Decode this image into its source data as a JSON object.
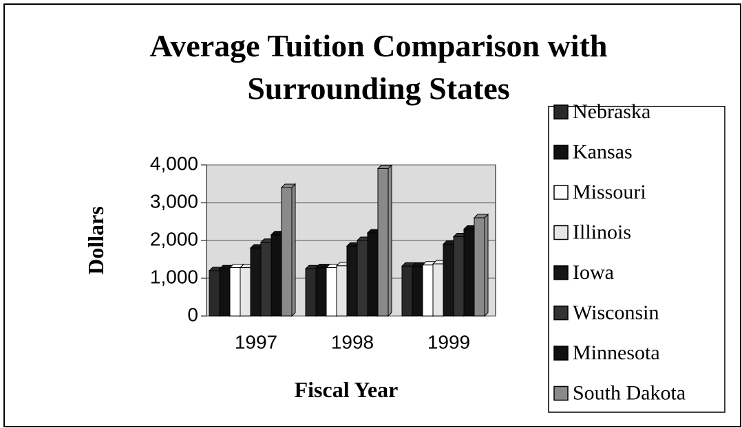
{
  "chart_data": {
    "type": "bar",
    "title": "Average Tuition Comparison with",
    "subtitle": "Surrounding States",
    "x_label": "Fiscal Year",
    "y_label": "Dollars",
    "categories": [
      "1997",
      "1998",
      "1999"
    ],
    "series": [
      {
        "name": "Nebraska",
        "color": "#2a2a2a",
        "values": [
          1200,
          1250,
          1320
        ]
      },
      {
        "name": "Kansas",
        "color": "#111111",
        "values": [
          1250,
          1280,
          1320
        ]
      },
      {
        "name": "Missouri",
        "color": "#ffffff",
        "values": [
          1280,
          1280,
          1350
        ]
      },
      {
        "name": "Illinois",
        "color": "#e6e6e6",
        "values": [
          1280,
          1330,
          1380
        ]
      },
      {
        "name": "Iowa",
        "color": "#151515",
        "values": [
          1800,
          1850,
          1900
        ]
      },
      {
        "name": "Wisconsin",
        "color": "#333333",
        "values": [
          1950,
          2000,
          2100
        ]
      },
      {
        "name": "Minnesota",
        "color": "#101010",
        "values": [
          2150,
          2200,
          2300
        ]
      },
      {
        "name": "South Dakota",
        "color": "#8a8a8a",
        "values": [
          3400,
          3900,
          2600
        ]
      }
    ],
    "ylim": [
      0,
      4000
    ],
    "yticks": [
      0,
      {
        "value": 1000,
        "label": "1,000"
      },
      {
        "value": 2000,
        "label": "2,000"
      },
      {
        "value": 3000,
        "label": "3,000"
      },
      {
        "value": 4000,
        "label": "4,000"
      }
    ],
    "grid": true,
    "legend": "right"
  }
}
